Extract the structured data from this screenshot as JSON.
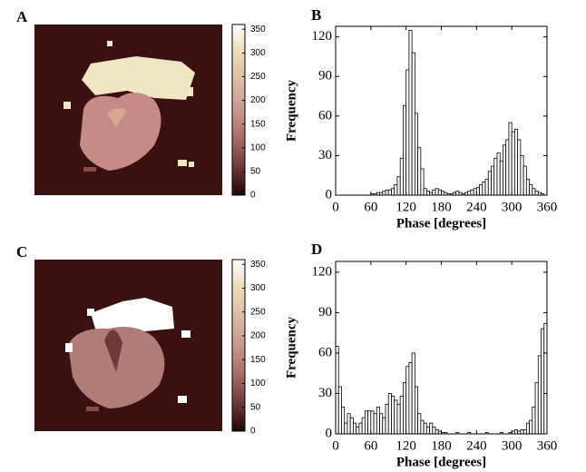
{
  "panel_labels": [
    "A",
    "B",
    "C",
    "D"
  ],
  "chart_data": [
    {
      "type": "colorbar",
      "ylim": [
        0,
        360
      ],
      "yticks": [
        0,
        50,
        100,
        150,
        200,
        250,
        300,
        350
      ],
      "colors": [
        "#1e0606",
        "#6e3a38",
        "#a86c68",
        "#c99891",
        "#dbbba2",
        "#eadbb5",
        "#ffffff"
      ]
    },
    {
      "type": "histogram",
      "xlabel": "Phase [degrees]",
      "ylabel": "Frequency",
      "bins": [
        0,
        5,
        10,
        15,
        20,
        25,
        30,
        35,
        40,
        45,
        50,
        55,
        60,
        65,
        70,
        75,
        80,
        85,
        90,
        95,
        100,
        105,
        110,
        115,
        120,
        125,
        130,
        135,
        140,
        145,
        150,
        155,
        160,
        165,
        170,
        175,
        180,
        185,
        190,
        195,
        200,
        205,
        210,
        215,
        220,
        225,
        230,
        235,
        240,
        245,
        250,
        255,
        260,
        265,
        270,
        275,
        280,
        285,
        290,
        295,
        300,
        305,
        310,
        315,
        320,
        325,
        330,
        335,
        340,
        345,
        350,
        355,
        360
      ],
      "values": [
        0,
        0,
        0,
        0,
        0,
        0,
        0,
        0,
        0,
        0,
        0,
        0,
        1,
        1,
        2,
        2,
        3,
        4,
        4,
        5,
        8,
        14,
        28,
        68,
        95,
        125,
        108,
        62,
        36,
        20,
        5,
        3,
        2,
        4,
        5,
        4,
        3,
        2,
        1,
        1,
        2,
        3,
        2,
        1,
        2,
        3,
        4,
        5,
        6,
        8,
        10,
        12,
        18,
        22,
        28,
        32,
        26,
        38,
        42,
        55,
        48,
        50,
        42,
        30,
        22,
        12,
        8,
        5,
        3,
        2,
        1,
        0
      ],
      "color": "#ffffff",
      "xlim": [
        0,
        360
      ],
      "xticks": [
        0,
        60,
        120,
        180,
        240,
        300,
        360
      ],
      "ylim": [
        0,
        128
      ],
      "yticks": [
        0,
        30,
        60,
        90,
        120
      ]
    },
    {
      "type": "colorbar",
      "ylim": [
        0,
        360
      ],
      "yticks": [
        0,
        50,
        100,
        150,
        200,
        250,
        300,
        350
      ],
      "colors": [
        "#1e0606",
        "#6e3a38",
        "#a86c68",
        "#c99891",
        "#dbbba2",
        "#eadbb5",
        "#ffffff"
      ]
    },
    {
      "type": "histogram",
      "xlabel": "Phase [degrees]",
      "ylabel": "Frequency",
      "bins": [
        0,
        5,
        10,
        15,
        20,
        25,
        30,
        35,
        40,
        45,
        50,
        55,
        60,
        65,
        70,
        75,
        80,
        85,
        90,
        95,
        100,
        105,
        110,
        115,
        120,
        125,
        130,
        135,
        140,
        145,
        150,
        155,
        160,
        165,
        170,
        175,
        180,
        185,
        190,
        195,
        200,
        205,
        210,
        215,
        220,
        225,
        230,
        235,
        240,
        245,
        250,
        255,
        260,
        265,
        270,
        275,
        280,
        285,
        290,
        295,
        300,
        305,
        310,
        315,
        320,
        325,
        330,
        335,
        340,
        345,
        350,
        355,
        360
      ],
      "values": [
        65,
        35,
        20,
        8,
        15,
        12,
        8,
        5,
        8,
        12,
        17,
        17,
        17,
        15,
        20,
        15,
        12,
        22,
        30,
        28,
        25,
        22,
        28,
        38,
        50,
        53,
        60,
        35,
        15,
        10,
        8,
        5,
        8,
        5,
        3,
        2,
        1,
        1,
        0,
        0,
        0,
        1,
        0,
        0,
        0,
        1,
        0,
        0,
        0,
        0,
        0,
        1,
        0,
        0,
        0,
        0,
        1,
        0,
        0,
        1,
        2,
        3,
        2,
        3,
        3,
        8,
        10,
        20,
        38,
        58,
        78,
        82
      ],
      "color": "#ffffff",
      "xlim": [
        0,
        360
      ],
      "xticks": [
        0,
        60,
        120,
        180,
        240,
        300,
        360
      ],
      "ylim": [
        0,
        128
      ],
      "yticks": [
        0,
        30,
        60,
        90,
        120
      ]
    }
  ]
}
